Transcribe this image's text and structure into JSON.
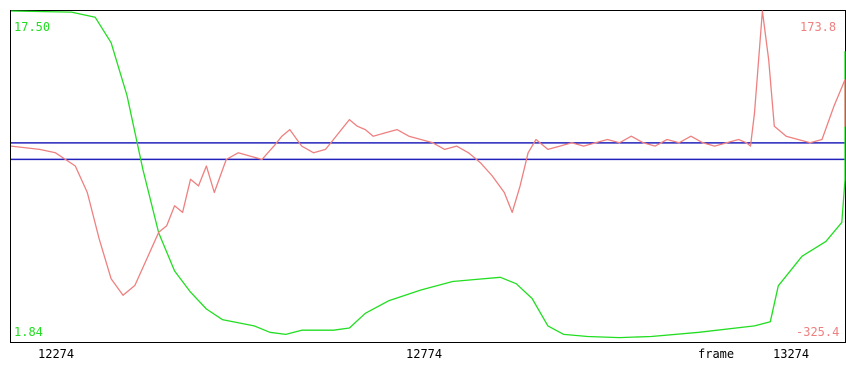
{
  "chart_data": {
    "type": "line",
    "x_ticks": [
      {
        "value": 12274,
        "label": "12274"
      },
      {
        "value": 12774,
        "label": "12774"
      },
      {
        "value": 13274,
        "label": "13274"
      }
    ],
    "x_axis_name": "frame",
    "xlim": [
      12274,
      13324
    ],
    "left_axis": {
      "max_label": "17.50",
      "min_label": "1.84",
      "range": [
        1.84,
        17.5
      ],
      "color": "#22dd22"
    },
    "right_axis": {
      "max_label": "173.8",
      "min_label": "-325.4",
      "range": [
        -325.4,
        173.8
      ],
      "color": "#ee8080"
    },
    "reference_lines": [
      {
        "axis": "right",
        "value": -25,
        "color": "#2222bb"
      },
      {
        "axis": "right",
        "value": -50,
        "color": "#2222bb"
      }
    ],
    "series": [
      {
        "axis": "left",
        "color": "#22dd22",
        "points": [
          [
            12274,
            17.5
          ],
          [
            12350,
            17.45
          ],
          [
            12380,
            17.2
          ],
          [
            12400,
            16.0
          ],
          [
            12420,
            13.5
          ],
          [
            12440,
            10.0
          ],
          [
            12460,
            7.0
          ],
          [
            12480,
            5.2
          ],
          [
            12500,
            4.2
          ],
          [
            12520,
            3.4
          ],
          [
            12540,
            2.9
          ],
          [
            12580,
            2.6
          ],
          [
            12600,
            2.3
          ],
          [
            12620,
            2.2
          ],
          [
            12640,
            2.4
          ],
          [
            12680,
            2.4
          ],
          [
            12700,
            2.5
          ],
          [
            12720,
            3.2
          ],
          [
            12750,
            3.8
          ],
          [
            12790,
            4.3
          ],
          [
            12830,
            4.7
          ],
          [
            12860,
            4.8
          ],
          [
            12890,
            4.9
          ],
          [
            12910,
            4.6
          ],
          [
            12930,
            3.9
          ],
          [
            12950,
            2.6
          ],
          [
            12970,
            2.2
          ],
          [
            13000,
            2.1
          ],
          [
            13040,
            2.05
          ],
          [
            13080,
            2.1
          ],
          [
            13140,
            2.3
          ],
          [
            13210,
            2.6
          ],
          [
            13230,
            2.8
          ],
          [
            13240,
            4.5
          ],
          [
            13270,
            5.9
          ],
          [
            13300,
            6.6
          ],
          [
            13320,
            7.5
          ],
          [
            13345,
            9.5
          ],
          [
            13360,
            11.0
          ],
          [
            13380,
            13.0
          ],
          [
            13400,
            14.5
          ],
          [
            13420,
            15.6
          ]
        ]
      },
      {
        "axis": "right",
        "color": "#ee8080",
        "points": [
          [
            12274,
            -30
          ],
          [
            12310,
            -35
          ],
          [
            12330,
            -40
          ],
          [
            12355,
            -60
          ],
          [
            12370,
            -100
          ],
          [
            12385,
            -170
          ],
          [
            12400,
            -230
          ],
          [
            12415,
            -255
          ],
          [
            12430,
            -240
          ],
          [
            12445,
            -200
          ],
          [
            12460,
            -160
          ],
          [
            12470,
            -150
          ],
          [
            12480,
            -120
          ],
          [
            12490,
            -130
          ],
          [
            12500,
            -80
          ],
          [
            12510,
            -90
          ],
          [
            12520,
            -60
          ],
          [
            12530,
            -100
          ],
          [
            12545,
            -50
          ],
          [
            12560,
            -40
          ],
          [
            12575,
            -45
          ],
          [
            12590,
            -50
          ],
          [
            12605,
            -30
          ],
          [
            12615,
            -15
          ],
          [
            12625,
            -5
          ],
          [
            12640,
            -30
          ],
          [
            12655,
            -40
          ],
          [
            12670,
            -35
          ],
          [
            12680,
            -20
          ],
          [
            12690,
            -5
          ],
          [
            12700,
            10
          ],
          [
            12710,
            0
          ],
          [
            12720,
            -5
          ],
          [
            12730,
            -15
          ],
          [
            12745,
            -10
          ],
          [
            12760,
            -5
          ],
          [
            12775,
            -15
          ],
          [
            12790,
            -20
          ],
          [
            12805,
            -25
          ],
          [
            12820,
            -35
          ],
          [
            12835,
            -30
          ],
          [
            12850,
            -40
          ],
          [
            12865,
            -55
          ],
          [
            12880,
            -75
          ],
          [
            12895,
            -100
          ],
          [
            12905,
            -130
          ],
          [
            12915,
            -90
          ],
          [
            12925,
            -40
          ],
          [
            12935,
            -20
          ],
          [
            12950,
            -35
          ],
          [
            12965,
            -30
          ],
          [
            12980,
            -25
          ],
          [
            12995,
            -30
          ],
          [
            13010,
            -25
          ],
          [
            13025,
            -20
          ],
          [
            13040,
            -25
          ],
          [
            13055,
            -15
          ],
          [
            13070,
            -25
          ],
          [
            13085,
            -30
          ],
          [
            13100,
            -20
          ],
          [
            13115,
            -25
          ],
          [
            13130,
            -15
          ],
          [
            13145,
            -25
          ],
          [
            13160,
            -30
          ],
          [
            13175,
            -25
          ],
          [
            13190,
            -20
          ],
          [
            13200,
            -25
          ],
          [
            13205,
            -30
          ],
          [
            13210,
            20
          ],
          [
            13220,
            175
          ],
          [
            13228,
            100
          ],
          [
            13235,
            0
          ],
          [
            13250,
            -15
          ],
          [
            13265,
            -20
          ],
          [
            13280,
            -25
          ],
          [
            13295,
            -20
          ],
          [
            13310,
            30
          ],
          [
            13325,
            70
          ],
          [
            13340,
            60
          ],
          [
            13360,
            40
          ],
          [
            13380,
            20
          ],
          [
            13400,
            0
          ],
          [
            13420,
            40
          ]
        ]
      }
    ]
  }
}
